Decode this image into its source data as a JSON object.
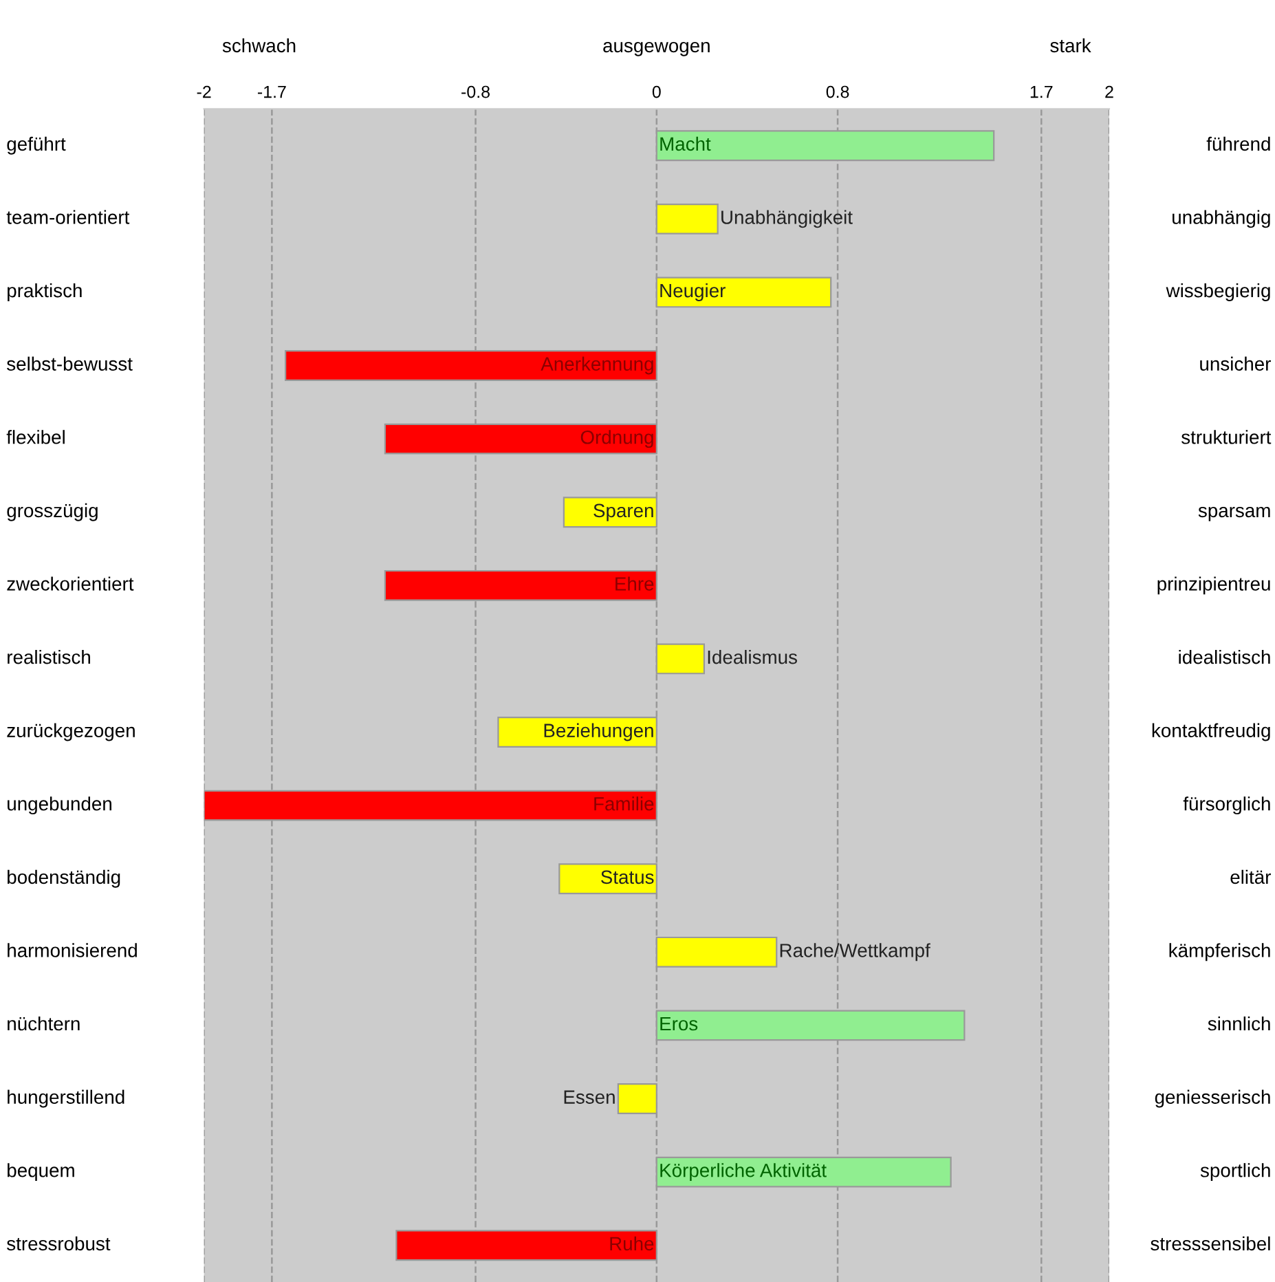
{
  "chart_data": {
    "type": "bar",
    "orientation": "horizontal",
    "categories": [
      "geführt",
      "team-orientiert",
      "praktisch",
      "selbst-bewusst",
      "flexibel",
      "grosszügig",
      "zweckorientiert",
      "realistisch",
      "zurückgezogen",
      "ungebunden",
      "bodenständig",
      "harmonisierend",
      "nüchtern",
      "hungerstillend",
      "bequem",
      "stressrobust"
    ],
    "values": [
      1.49,
      0.27,
      0.77,
      -1.64,
      -1.2,
      -0.41,
      -1.2,
      0.21,
      -0.7,
      -2,
      -0.43,
      0.53,
      1.36,
      -0.17,
      1.3,
      -1.15
    ],
    "colors": [
      "#90ee90",
      "#ffff00",
      "#ffff00",
      "#ff0000",
      "#ff0000",
      "#ffff00",
      "#ff0000",
      "#ffff00",
      "#ffff00",
      "#ff0000",
      "#ffff00",
      "#ffff00",
      "#90ee90",
      "#ffff00",
      "#90ee90",
      "#ff0000"
    ],
    "value_labels": [
      "Macht",
      "Unabhängigkeit",
      "Neugier",
      "Anerkennung",
      "Ordnung",
      "Sparen",
      "Ehre",
      "Idealismus",
      "Beziehungen",
      "Familie",
      "Status",
      "Rache/Wettkampf",
      "Eros",
      "Essen",
      "Körperliche Aktivität",
      "Ruhe"
    ],
    "xlim": [
      -2,
      2
    ],
    "xticks": [
      -2,
      -1.7,
      -0.8,
      0,
      0.8,
      1.7,
      2
    ],
    "annotations": [
      "führend",
      "unabhängig",
      "wissbegierig",
      "unsicher",
      "strukturiert",
      "sparsam",
      "prinzipientreu",
      "idealistisch",
      "kontaktfreudig",
      "fürsorglich",
      "elitär",
      "kämpferisch",
      "sinnlich",
      "geniesserisch",
      "sportlich",
      "stresssensibel",
      "schwach",
      "ausgewogen",
      "stark"
    ],
    "grid": "x",
    "line_style": "dashed",
    "legend": false
  }
}
